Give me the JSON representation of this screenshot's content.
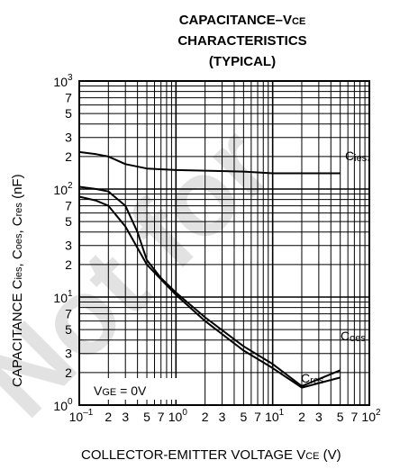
{
  "chart_data": {
    "type": "line",
    "title_lines": [
      "CAPACITANCE–V",
      "CHARACTERISTICS",
      "(TYPICAL)"
    ],
    "title_sub": "CE",
    "xlabel": "COLLECTOR-EMITTER VOLTAGE  V",
    "xlabel_sub": "CE",
    "xlabel_unit": " (V)",
    "ylabel_parts": [
      "CAPACITANCE  C",
      "ies",
      ", C",
      "oes",
      ", C",
      "res",
      " (nF)"
    ],
    "x_scale": "log",
    "y_scale": "log",
    "xlim": [
      0.1,
      100
    ],
    "ylim": [
      1,
      1000
    ],
    "grid": true,
    "x_major_ticks": [
      {
        "value": 0.1,
        "base": "10",
        "exp": "–1"
      },
      {
        "value": 1,
        "base": "10",
        "exp": "0"
      },
      {
        "value": 10,
        "base": "10",
        "exp": "1"
      },
      {
        "value": 100,
        "base": "10",
        "exp": "2"
      }
    ],
    "y_major_ticks": [
      {
        "value": 1,
        "base": "10",
        "exp": "0"
      },
      {
        "value": 10,
        "base": "10",
        "exp": "1"
      },
      {
        "value": 100,
        "base": "10",
        "exp": "2"
      },
      {
        "value": 1000,
        "base": "10",
        "exp": "3"
      }
    ],
    "minor_tick_labels": [
      "2",
      "3",
      "5",
      "7"
    ],
    "annotation": {
      "main": "V",
      "sub": "GE",
      "rest": " = 0V"
    },
    "series": [
      {
        "name": "C",
        "name_sub": "ies",
        "x": [
          0.1,
          0.15,
          0.2,
          0.3,
          0.5,
          1,
          2,
          5,
          10,
          20,
          50
        ],
        "y": [
          220,
          210,
          200,
          170,
          155,
          150,
          148,
          145,
          140,
          140,
          140
        ]
      },
      {
        "name": "C",
        "name_sub": "oes",
        "x": [
          0.1,
          0.15,
          0.2,
          0.3,
          0.4,
          0.5,
          0.7,
          1,
          2,
          5,
          10,
          20,
          50
        ],
        "y": [
          105,
          100,
          95,
          70,
          40,
          22,
          15,
          11,
          6.5,
          3.5,
          2.4,
          1.5,
          2.1
        ]
      },
      {
        "name": "C",
        "name_sub": "res",
        "x": [
          0.1,
          0.15,
          0.2,
          0.3,
          0.5,
          1,
          2,
          5,
          10,
          20,
          50
        ],
        "y": [
          85,
          78,
          70,
          45,
          20,
          10.5,
          6,
          3.2,
          2.2,
          1.45,
          1.8
        ]
      }
    ]
  },
  "watermark": "Not for"
}
